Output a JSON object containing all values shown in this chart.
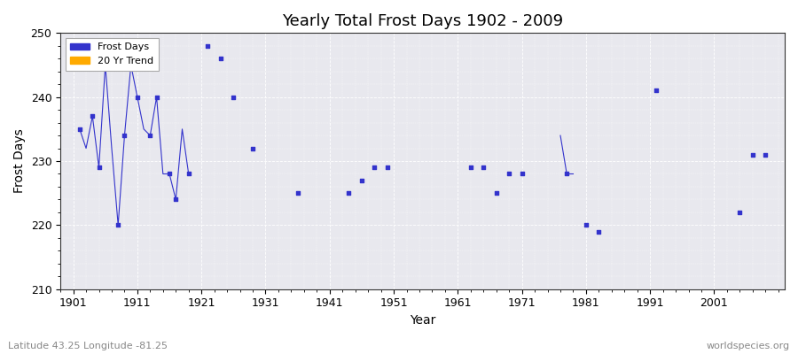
{
  "title": "Yearly Total Frost Days 1902 - 2009",
  "xlabel": "Year",
  "ylabel": "Frost Days",
  "xlim": [
    1899,
    2012
  ],
  "ylim": [
    210,
    250
  ],
  "yticks": [
    210,
    220,
    230,
    240,
    250
  ],
  "xticks": [
    1901,
    1911,
    1921,
    1931,
    1941,
    1951,
    1961,
    1971,
    1981,
    1991,
    2001
  ],
  "xtick_labels": [
    "1901",
    "1911",
    "1921",
    "1931",
    "1941",
    "1951",
    "1961",
    "1971",
    "1981",
    "1991",
    "2001"
  ],
  "background_color": "#ffffff",
  "plot_bg_color": "#e8e8ee",
  "frost_color": "#3333cc",
  "trend_color": "#ffaa00",
  "scatter_marker": "s",
  "scatter_size": 8,
  "subtitle_left": "Latitude 43.25 Longitude -81.25",
  "subtitle_right": "worldspecies.org",
  "legend_frost": "Frost Days",
  "legend_trend": "20 Yr Trend",
  "scatter_years": [
    1902,
    1904,
    1905,
    1906,
    1908,
    1909,
    1910,
    1911,
    1913,
    1914,
    1916,
    1917,
    1919,
    1922,
    1924,
    1926,
    1929,
    1936,
    1944,
    1946,
    1948,
    1950,
    1963,
    1965,
    1967,
    1969,
    1971,
    1978,
    1981,
    1983,
    1992,
    2005,
    2007,
    2009
  ],
  "scatter_values": [
    235,
    237,
    229,
    245,
    220,
    234,
    245,
    240,
    234,
    240,
    228,
    224,
    228,
    248,
    246,
    240,
    232,
    225,
    225,
    227,
    229,
    229,
    229,
    229,
    225,
    228,
    228,
    228,
    220,
    219,
    241,
    222,
    231,
    231
  ],
  "line_seg1_years": [
    1902,
    1903,
    1904,
    1905,
    1906,
    1907,
    1908,
    1909,
    1910,
    1911,
    1912,
    1913,
    1914,
    1915,
    1916,
    1917,
    1918,
    1919
  ],
  "line_seg1_values": [
    235,
    232,
    237,
    229,
    245,
    232,
    220,
    234,
    245,
    240,
    235,
    234,
    240,
    228,
    228,
    224,
    235,
    228
  ],
  "line_seg2_years": [
    1977,
    1978,
    1979
  ],
  "line_seg2_values": [
    234,
    228,
    228
  ]
}
